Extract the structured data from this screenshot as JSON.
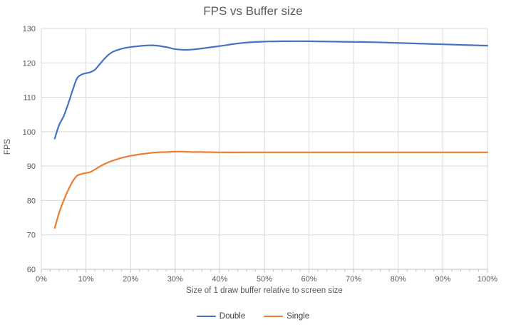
{
  "chart_data": {
    "type": "line",
    "title": "FPS vs Buffer size",
    "xlabel": "Size of 1 draw buffer relative to screen size",
    "ylabel": "FPS",
    "xlim": [
      0,
      100
    ],
    "ylim": [
      60,
      130
    ],
    "x_tick_suffix": "%",
    "x_major_ticks": [
      0,
      10,
      20,
      30,
      40,
      50,
      60,
      70,
      80,
      90,
      100
    ],
    "x_minor_tick_step": 2,
    "y_ticks": [
      60,
      70,
      80,
      90,
      100,
      110,
      120,
      130
    ],
    "grid": true,
    "legend_position": "bottom",
    "x": [
      3,
      4,
      5,
      6,
      7,
      8,
      9,
      10,
      11,
      12,
      13,
      14,
      15,
      16,
      17,
      18,
      19,
      20,
      22,
      25,
      28,
      30,
      32,
      34,
      36,
      40,
      45,
      50,
      55,
      60,
      65,
      70,
      75,
      80,
      85,
      90,
      95,
      100
    ],
    "series": [
      {
        "name": "Double",
        "color": "#4472C4",
        "values": [
          98,
          102,
          104.5,
          108,
          112,
          115.5,
          116.6,
          117,
          117.3,
          118,
          119.5,
          121,
          122.3,
          123.2,
          123.7,
          124.1,
          124.4,
          124.6,
          124.9,
          125.1,
          124.6,
          124,
          123.8,
          123.9,
          124.2,
          124.9,
          125.8,
          126.2,
          126.3,
          126.3,
          126.2,
          126.1,
          126,
          125.8,
          125.6,
          125.4,
          125.2,
          125
        ]
      },
      {
        "name": "Single",
        "color": "#ED7D31",
        "values": [
          72,
          76.5,
          80,
          83,
          85.5,
          87.2,
          87.7,
          88,
          88.3,
          89,
          89.8,
          90.5,
          91.1,
          91.6,
          92,
          92.4,
          92.7,
          93,
          93.4,
          93.9,
          94.1,
          94.2,
          94.2,
          94.1,
          94.1,
          94,
          94,
          94,
          94,
          94,
          94,
          94,
          94,
          94,
          94,
          94,
          94,
          94
        ]
      }
    ]
  },
  "colors": {
    "grid": "#D9D9D9",
    "axis": "#BFBFBF",
    "tick_text": "#595959",
    "title_text": "#595959",
    "background": "#FFFFFF"
  }
}
